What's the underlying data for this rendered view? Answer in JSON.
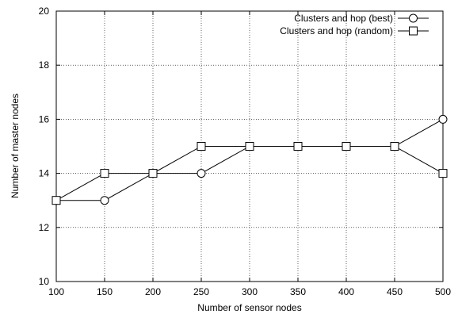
{
  "chart_data": {
    "type": "line",
    "xlabel": "Number of sensor nodes",
    "ylabel": "Number of master nodes",
    "xlim": [
      100,
      500
    ],
    "ylim": [
      10,
      20
    ],
    "x_ticks": [
      100,
      150,
      200,
      250,
      300,
      350,
      400,
      450,
      500
    ],
    "y_ticks": [
      10,
      12,
      14,
      16,
      18,
      20
    ],
    "grid": true,
    "legend_position": "top-right",
    "x": [
      100,
      150,
      200,
      250,
      300,
      350,
      400,
      450,
      500
    ],
    "series": [
      {
        "name": "Clusters and hop (best)",
        "marker": "circle",
        "values": [
          13,
          13,
          14,
          14,
          15,
          15,
          15,
          15,
          16
        ]
      },
      {
        "name": "Clusters and hop (random)",
        "marker": "square",
        "values": [
          13,
          14,
          14,
          15,
          15,
          15,
          15,
          15,
          14
        ]
      }
    ]
  }
}
